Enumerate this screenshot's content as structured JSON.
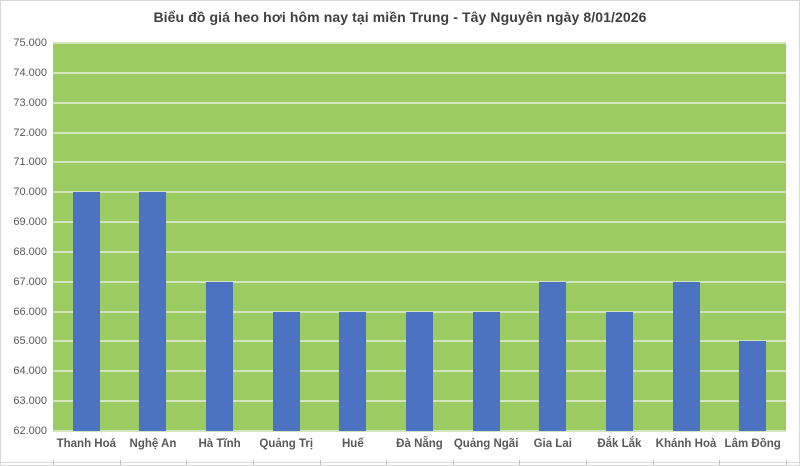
{
  "chart_data": {
    "type": "bar",
    "title": "Biểu đồ giá heo hơi hôm nay tại miền Trung - Tây Nguyên ngày 8/01/2026",
    "categories": [
      "Thanh Hoá",
      "Nghệ An",
      "Hà Tĩnh",
      "Quảng Trị",
      "Huế",
      "Đà Nẵng",
      "Quảng Ngãi",
      "Gia Lai",
      "Đắk Lắk",
      "Khánh Hoà",
      "Lâm Đồng"
    ],
    "values": [
      70000,
      70000,
      67000,
      66000,
      66000,
      66000,
      66000,
      67000,
      66000,
      67000,
      65000
    ],
    "xlabel": "",
    "ylabel": "",
    "ylim": [
      62000,
      75000
    ],
    "ytick_step": 1000,
    "ytick_labels": [
      "62.000",
      "63.000",
      "64.000",
      "65.000",
      "66.000",
      "67.000",
      "68.000",
      "69.000",
      "70.000",
      "71.000",
      "72.000",
      "73.000",
      "74.000",
      "75.000"
    ],
    "grid": true,
    "legend": false,
    "colors": {
      "bar": "#4C72C2",
      "plot_bg": "#9CCB62",
      "gridline": "#D2E4BC",
      "title_text": "#404040",
      "axis_text": "#595959",
      "border": "#D9D9D9",
      "background": "#FFFFFF"
    }
  }
}
